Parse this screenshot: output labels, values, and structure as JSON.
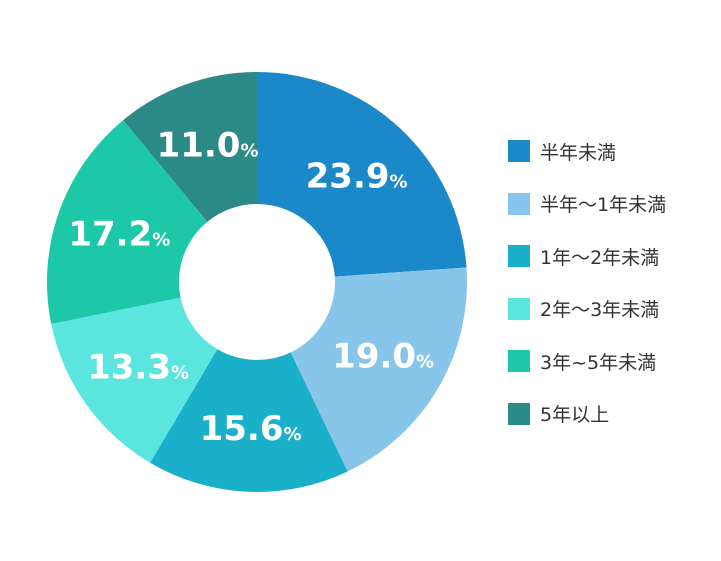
{
  "chart_data": {
    "type": "pie",
    "donut": true,
    "title": "",
    "value_suffix": "%",
    "legend_position": "right",
    "categories": [
      "半年未満",
      "半年〜1年未満",
      "1年〜2年未満",
      "2年〜3年未満",
      "3年~5年未満",
      "5年以上"
    ],
    "values": [
      23.9,
      19.0,
      15.6,
      13.3,
      17.2,
      11.0
    ],
    "value_labels": [
      "23.9",
      "19.0",
      "15.6",
      "13.3",
      "17.2",
      "11.0"
    ],
    "colors": [
      "#1a88c9",
      "#88c5ea",
      "#1ab0c9",
      "#5ae5df",
      "#1cc8a7",
      "#2b8a86"
    ]
  }
}
